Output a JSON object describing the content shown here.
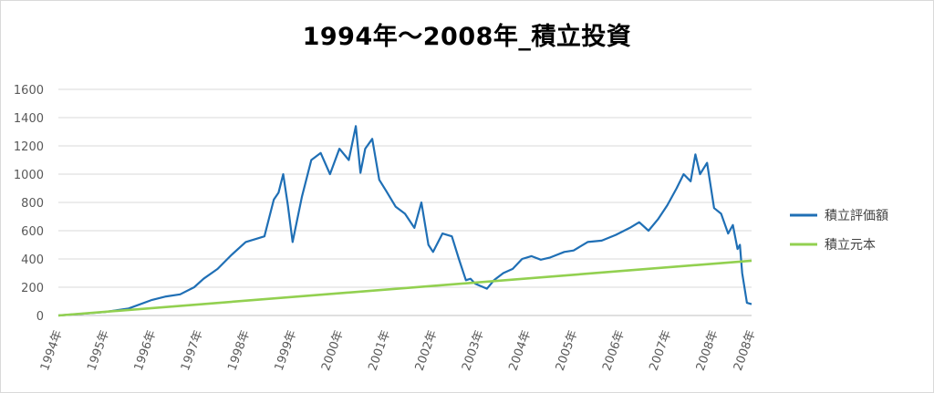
{
  "chart_data": {
    "type": "line",
    "title": "1994年～2008年_積立投資",
    "xlabel": "",
    "ylabel": "",
    "ylim": [
      0,
      1600
    ],
    "yticks": [
      0,
      200,
      400,
      600,
      800,
      1000,
      1200,
      1400,
      1600
    ],
    "xlim": [
      1994.0,
      2008.8
    ],
    "xtick_labels": [
      "1994年",
      "1995年",
      "1996年",
      "1997年",
      "1998年",
      "1999年",
      "2000年",
      "2001年",
      "2002年",
      "2003年",
      "2004年",
      "2005年",
      "2006年",
      "2007年",
      "2008年",
      "2008年"
    ],
    "xtick_positions": [
      1994.0,
      1995.0,
      1996.0,
      1997.0,
      1998.0,
      1999.0,
      2000.0,
      2001.0,
      2002.0,
      2003.0,
      2004.0,
      2005.0,
      2006.0,
      2007.0,
      2008.0,
      2008.8
    ],
    "grid": true,
    "legend_position": "right",
    "series": [
      {
        "name": "積立評価額",
        "color": "#1f6fb5",
        "x": [
          1994.0,
          1994.5,
          1995.0,
          1995.5,
          1996.0,
          1996.3,
          1996.6,
          1996.9,
          1997.1,
          1997.4,
          1997.7,
          1998.0,
          1998.2,
          1998.4,
          1998.6,
          1998.7,
          1998.8,
          1998.9,
          1999.0,
          1999.2,
          1999.4,
          1999.6,
          1999.8,
          2000.0,
          2000.2,
          2000.35,
          2000.45,
          2000.55,
          2000.7,
          2000.85,
          2001.0,
          2001.2,
          2001.4,
          2001.6,
          2001.75,
          2001.9,
          2002.0,
          2002.2,
          2002.4,
          2002.55,
          2002.7,
          2002.8,
          2002.9,
          2003.0,
          2003.15,
          2003.3,
          2003.5,
          2003.7,
          2003.9,
          2004.1,
          2004.3,
          2004.5,
          2004.8,
          2005.0,
          2005.3,
          2005.6,
          2005.9,
          2006.2,
          2006.4,
          2006.6,
          2006.8,
          2007.0,
          2007.2,
          2007.35,
          2007.5,
          2007.6,
          2007.7,
          2007.85,
          2008.0,
          2008.15,
          2008.3,
          2008.4,
          2008.5,
          2008.55,
          2008.6,
          2008.7,
          2008.8
        ],
        "y": [
          0,
          12,
          25,
          50,
          110,
          135,
          150,
          200,
          260,
          330,
          430,
          520,
          540,
          560,
          820,
          870,
          1000,
          780,
          520,
          840,
          1100,
          1150,
          1000,
          1180,
          1100,
          1340,
          1010,
          1180,
          1250,
          960,
          880,
          770,
          720,
          620,
          800,
          500,
          450,
          580,
          560,
          400,
          250,
          260,
          225,
          210,
          190,
          250,
          300,
          330,
          400,
          420,
          395,
          410,
          450,
          460,
          520,
          530,
          570,
          620,
          660,
          600,
          680,
          780,
          900,
          1000,
          950,
          1140,
          1000,
          1080,
          760,
          720,
          580,
          640,
          470,
          500,
          300,
          90,
          80
        ]
      },
      {
        "name": "積立元本",
        "color": "#92d050",
        "x": [
          1994.0,
          2008.8
        ],
        "y": [
          0,
          388
        ]
      }
    ]
  }
}
